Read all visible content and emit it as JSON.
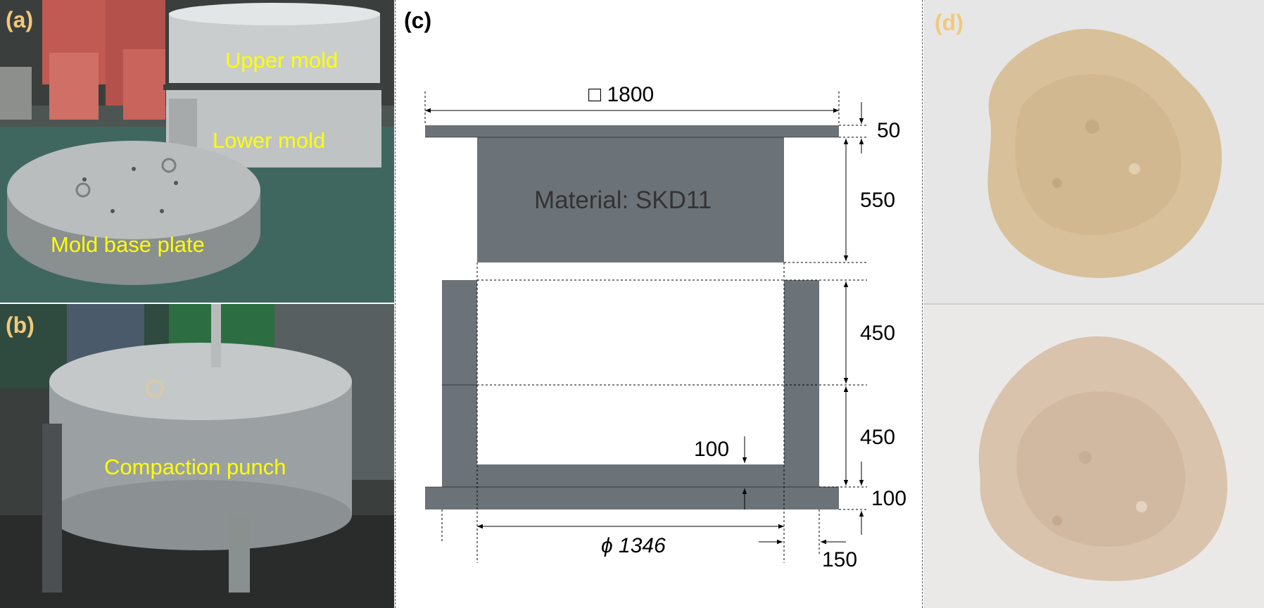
{
  "panels": {
    "a": {
      "letter": "(a)",
      "labels": {
        "upper": "Upper mold",
        "lower": "Lower mold",
        "base": "Mold base plate"
      }
    },
    "b": {
      "letter": "(b)",
      "labels": {
        "punch": "Compaction punch"
      }
    },
    "c": {
      "letter": "(c)",
      "material": "Material: SKD11",
      "dims": {
        "width": "□ 1800",
        "top_thk": "50",
        "upper_h": "550",
        "mid_h": "450",
        "low_h": "450",
        "inner_floor": "100",
        "base_thk": "100",
        "diameter": "ϕ 1346",
        "wall": "150"
      }
    },
    "d": {
      "letter": "(d)"
    }
  },
  "colors": {
    "steel": "#6c7378",
    "label_yellow": "#ffff00",
    "letter_gold": "#f2c97a",
    "powder_top": "#d8c09a",
    "powder_bottom": "#d9c3ac"
  }
}
